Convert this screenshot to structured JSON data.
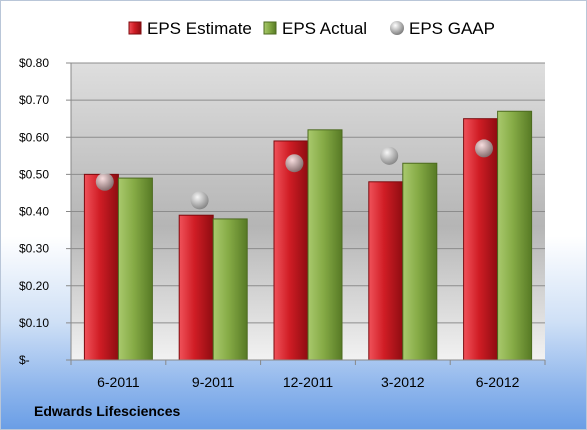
{
  "company": "Edwards Lifesciences",
  "chart_data": {
    "type": "bar",
    "categories": [
      "6-2011",
      "9-2011",
      "12-2011",
      "3-2012",
      "6-2012"
    ],
    "series": [
      {
        "name": "EPS Estimate",
        "kind": "bar",
        "color": "#c0141b",
        "values": [
          0.5,
          0.39,
          0.59,
          0.48,
          0.65
        ]
      },
      {
        "name": "EPS Actual",
        "kind": "bar",
        "color": "#7a9e3a",
        "values": [
          0.49,
          0.38,
          0.62,
          0.53,
          0.67
        ]
      },
      {
        "name": "EPS GAAP",
        "kind": "marker",
        "color": "#a8a8a8",
        "values": [
          0.48,
          0.43,
          0.53,
          0.55,
          0.57
        ]
      }
    ],
    "y_ticks": [
      "$-",
      "$0.10",
      "$0.20",
      "$0.30",
      "$0.40",
      "$0.50",
      "$0.60",
      "$0.70",
      "$0.80"
    ],
    "ylim": [
      0,
      0.8
    ],
    "grid": true,
    "legend_position": "top"
  }
}
